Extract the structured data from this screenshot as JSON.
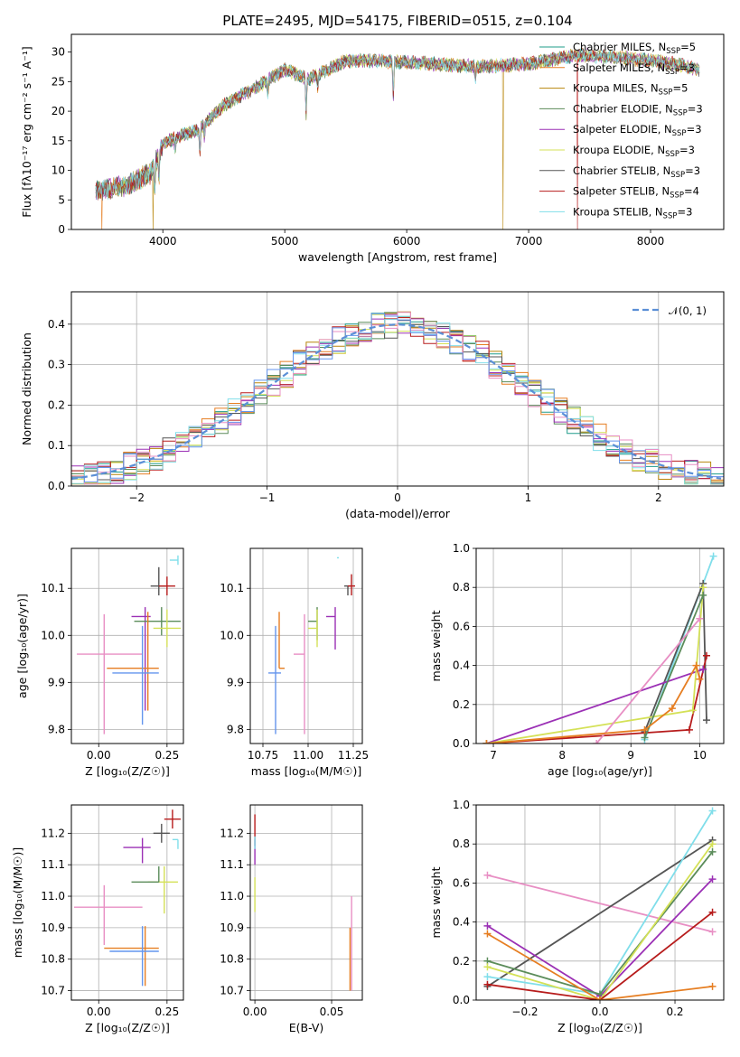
{
  "figure": {
    "title": "PLATE=2495, MJD=54175, FIBERID=0515, z=0.104"
  },
  "colors": {
    "Chabrier MILES": "#1f9c8a",
    "Salpeter MILES": "#e67e22",
    "Kroupa MILES": "#b8860b",
    "Chabrier ELODIE": "#5b8c5a",
    "Salpeter ELODIE": "#9b30b5",
    "Kroupa ELODIE": "#d4e157",
    "Chabrier STELIB": "#555555",
    "Salpeter STELIB": "#b71c1c",
    "Kroupa STELIB": "#80deea",
    "extra_blue": "#6495ed",
    "extra_pink": "#e88fc4",
    "normal_curve": "#5b8fd6"
  },
  "chart_data": [
    {
      "id": "spectrum",
      "type": "line",
      "title": "PLATE=2495, MJD=54175, FIBERID=0515, z=0.104",
      "xlabel": "wavelength [Angstrom, rest frame]",
      "ylabel": "Flux [fλ10⁻¹⁷ erg cm⁻² s⁻¹ A⁻¹]",
      "xlim": [
        3250,
        8600
      ],
      "ylim": [
        0,
        33
      ],
      "xticks": [
        4000,
        5000,
        6000,
        7000,
        8000
      ],
      "yticks": [
        0,
        5,
        10,
        15,
        20,
        25,
        30
      ],
      "legend_position": "top-right",
      "grid": false,
      "continuum_wavelength": [
        3450,
        3700,
        3900,
        4000,
        4100,
        4300,
        4500,
        4800,
        5000,
        5200,
        5500,
        5800,
        6200,
        6600,
        7000,
        7400,
        7800,
        8200,
        8400
      ],
      "continuum_flux": [
        6.5,
        7.5,
        9.5,
        14.5,
        15.5,
        17.0,
        21.0,
        24.5,
        27.0,
        25.5,
        28.5,
        28.5,
        28.0,
        27.5,
        28.0,
        29.5,
        29.0,
        28.0,
        27.0
      ],
      "absorption_features": [
        {
          "wavelength": 3934,
          "depth": 5
        },
        {
          "wavelength": 3968,
          "depth": 4
        },
        {
          "wavelength": 4101,
          "depth": 2
        },
        {
          "wavelength": 4304,
          "depth": 4
        },
        {
          "wavelength": 4340,
          "depth": 2
        },
        {
          "wavelength": 4861,
          "depth": 2
        },
        {
          "wavelength": 5175,
          "depth": 6
        },
        {
          "wavelength": 5270,
          "depth": 2
        },
        {
          "wavelength": 5890,
          "depth": 6
        },
        {
          "wavelength": 6563,
          "depth": 2
        }
      ],
      "series": [
        {
          "name": "Chabrier MILES",
          "nssp": "5"
        },
        {
          "name": "Salpeter MILES",
          "nssp": "3"
        },
        {
          "name": "Kroupa MILES",
          "nssp": "5"
        },
        {
          "name": "Chabrier ELODIE",
          "nssp": "3"
        },
        {
          "name": "Salpeter ELODIE",
          "nssp": "3"
        },
        {
          "name": "Kroupa ELODIE",
          "nssp": "3"
        },
        {
          "name": "Chabrier STELIB",
          "nssp": "3"
        },
        {
          "name": "Salpeter STELIB",
          "nssp": "4"
        },
        {
          "name": "Kroupa STELIB",
          "nssp": "3"
        }
      ],
      "drops": [
        {
          "series": "Salpeter MILES",
          "wavelength": 3500
        },
        {
          "series": "Kroupa MILES",
          "wavelength": 3920
        },
        {
          "series": "Kroupa MILES",
          "wavelength": 6790
        },
        {
          "series": "Salpeter STELIB",
          "wavelength": 7400
        }
      ]
    },
    {
      "id": "residuals",
      "type": "histogram",
      "xlabel": "(data-model)/error",
      "ylabel": "Normed distribution",
      "xlim": [
        -2.5,
        2.5
      ],
      "ylim": [
        0,
        0.48
      ],
      "xticks": [
        -2,
        -1,
        0,
        1,
        2
      ],
      "yticks": [
        0.0,
        0.1,
        0.2,
        0.3,
        0.4
      ],
      "grid": true,
      "legend_position": "top-right",
      "curve": {
        "name": "𝒩(0, 1)",
        "mean": 0,
        "sigma": 1
      },
      "bin_width": 0.1
    },
    {
      "id": "age_vs_Z",
      "type": "errorbar",
      "xlabel": "Z [log₁₀(Z/Z☉)]",
      "ylabel": "age  [log₁₀(age/yr)]",
      "xlim": [
        -0.1,
        0.31
      ],
      "ylim": [
        9.77,
        10.185
      ],
      "xticks": [
        0.0,
        0.25
      ],
      "yticks": [
        9.8,
        9.9,
        10.0,
        10.1
      ],
      "grid": true,
      "points": [
        {
          "color": "Kroupa STELIB",
          "x": 0.29,
          "y": 10.16,
          "xerr": [
            0.03,
            0.0
          ],
          "yerr": [
            0.01,
            0.01
          ]
        },
        {
          "color": "Chabrier STELIB",
          "x": 0.22,
          "y": 10.105,
          "xerr": [
            0.03,
            0.03
          ],
          "yerr": [
            0.02,
            0.04
          ]
        },
        {
          "color": "Salpeter STELIB",
          "x": 0.25,
          "y": 10.105,
          "xerr": [
            0.03,
            0.03
          ],
          "yerr": [
            0.02,
            0.02
          ]
        },
        {
          "color": "Salpeter ELODIE",
          "x": 0.17,
          "y": 10.04,
          "xerr": [
            0.05,
            0.02
          ],
          "yerr": [
            0.2,
            0.02
          ]
        },
        {
          "color": "Chabrier ELODIE",
          "x": 0.23,
          "y": 10.03,
          "xerr": [
            0.1,
            0.07
          ],
          "yerr": [
            0.03,
            0.03
          ]
        },
        {
          "color": "Kroupa ELODIE",
          "x": 0.25,
          "y": 10.015,
          "xerr": [
            0.05,
            0.05
          ],
          "yerr": [
            0.04,
            0.04
          ]
        },
        {
          "color": "extra_pink",
          "x": 0.02,
          "y": 9.96,
          "xerr": [
            0.1,
            0.14
          ],
          "yerr": [
            0.17,
            0.085
          ]
        },
        {
          "color": "Salpeter MILES",
          "x": 0.18,
          "y": 9.93,
          "xerr": [
            0.15,
            0.04
          ],
          "yerr": [
            0.09,
            0.12
          ]
        },
        {
          "color": "extra_blue",
          "x": 0.16,
          "y": 9.92,
          "xerr": [
            0.11,
            0.06
          ],
          "yerr": [
            0.11,
            0.1
          ]
        }
      ]
    },
    {
      "id": "age_vs_mass",
      "type": "errorbar",
      "xlabel": "mass [log₁₀(M/M☉)]",
      "ylabel": "",
      "xlim": [
        10.68,
        11.3
      ],
      "ylim": [
        9.77,
        10.185
      ],
      "xticks": [
        10.75,
        11.0,
        11.25
      ],
      "yticks": [
        9.8,
        9.9,
        10.0,
        10.1
      ],
      "grid": true,
      "points": [
        {
          "color": "Kroupa STELIB",
          "x": 11.17,
          "y": 10.165,
          "xerr": [
            0.01,
            0.0
          ],
          "yerr": [
            0.0,
            0.0
          ]
        },
        {
          "color": "Chabrier STELIB",
          "x": 11.22,
          "y": 10.105,
          "xerr": [
            0.02,
            0.02
          ],
          "yerr": [
            0.02,
            0.0
          ]
        },
        {
          "color": "Salpeter STELIB",
          "x": 11.24,
          "y": 10.105,
          "xerr": [
            0.02,
            0.02
          ],
          "yerr": [
            0.02,
            0.025
          ]
        },
        {
          "color": "Salpeter ELODIE",
          "x": 11.15,
          "y": 10.04,
          "xerr": [
            0.05,
            0.0
          ],
          "yerr": [
            0.07,
            0.02
          ]
        },
        {
          "color": "Chabrier ELODIE",
          "x": 11.05,
          "y": 10.03,
          "xerr": [
            0.05,
            0.0
          ],
          "yerr": [
            0.04,
            0.03
          ]
        },
        {
          "color": "Kroupa ELODIE",
          "x": 11.05,
          "y": 10.015,
          "xerr": [
            0.05,
            0.0
          ],
          "yerr": [
            0.04,
            0.04
          ]
        },
        {
          "color": "extra_pink",
          "x": 10.98,
          "y": 9.96,
          "xerr": [
            0.06,
            0.0
          ],
          "yerr": [
            0.17,
            0.085
          ]
        },
        {
          "color": "Salpeter MILES",
          "x": 10.84,
          "y": 9.93,
          "xerr": [
            0.0,
            0.03
          ],
          "yerr": [
            0.0,
            0.12
          ]
        },
        {
          "color": "extra_blue",
          "x": 10.82,
          "y": 9.92,
          "xerr": [
            0.04,
            0.03
          ],
          "yerr": [
            0.13,
            0.1
          ]
        }
      ]
    },
    {
      "id": "mass_weight_vs_age",
      "type": "line",
      "xlabel": "age  [log₁₀(age/yr)]",
      "ylabel": "mass weight",
      "xlim": [
        6.75,
        10.35
      ],
      "ylim": [
        0,
        1.0
      ],
      "xticks": [
        7,
        8,
        9,
        10
      ],
      "yticks": [
        0.0,
        0.2,
        0.4,
        0.6,
        0.8,
        1.0
      ],
      "grid": true,
      "series": [
        {
          "color": "Kroupa STELIB",
          "x": [
            9.2,
            10.2
          ],
          "y": [
            0.02,
            0.96
          ]
        },
        {
          "color": "Chabrier STELIB",
          "x": [
            9.2,
            10.05,
            10.1
          ],
          "y": [
            0.06,
            0.82,
            0.12
          ]
        },
        {
          "color": "Salpeter STELIB",
          "x": [
            6.9,
            9.85,
            10.1
          ],
          "y": [
            0.0,
            0.07,
            0.45
          ]
        },
        {
          "color": "Salpeter ELODIE",
          "x": [
            6.9,
            10.05
          ],
          "y": [
            0.0,
            0.38
          ]
        },
        {
          "color": "Kroupa ELODIE",
          "x": [
            6.9,
            9.9,
            10.05
          ],
          "y": [
            0.0,
            0.17,
            0.8
          ]
        },
        {
          "color": "Chabrier ELODIE",
          "x": [
            9.2,
            10.05
          ],
          "y": [
            0.03,
            0.76
          ]
        },
        {
          "color": "extra_pink",
          "x": [
            8.5,
            10.0
          ],
          "y": [
            0.0,
            0.64
          ]
        },
        {
          "color": "Salpeter MILES",
          "x": [
            6.9,
            9.2,
            9.6,
            9.95,
            10.0
          ],
          "y": [
            0.0,
            0.07,
            0.18,
            0.4,
            0.33
          ]
        }
      ]
    },
    {
      "id": "mass_vs_Z",
      "type": "errorbar",
      "xlabel": "Z [log₁₀(Z/Z☉)]",
      "ylabel": "mass [log₁₀(M/M☉)]",
      "xlim": [
        -0.1,
        0.31
      ],
      "ylim": [
        10.67,
        11.29
      ],
      "xticks": [
        0.0,
        0.25
      ],
      "yticks": [
        10.7,
        10.8,
        10.9,
        11.0,
        11.1,
        11.2
      ],
      "grid": true,
      "points": [
        {
          "color": "Salpeter STELIB",
          "x": 0.27,
          "y": 11.245,
          "xerr": [
            0.03,
            0.03
          ],
          "yerr": [
            0.03,
            0.03
          ]
        },
        {
          "color": "Chabrier STELIB",
          "x": 0.23,
          "y": 11.2,
          "xerr": [
            0.03,
            0.03
          ],
          "yerr": [
            0.03,
            0.03
          ]
        },
        {
          "color": "Kroupa STELIB",
          "x": 0.29,
          "y": 11.18,
          "xerr": [
            0.02,
            0.0
          ],
          "yerr": [
            0.03,
            0.0
          ]
        },
        {
          "color": "Salpeter ELODIE",
          "x": 0.16,
          "y": 11.155,
          "xerr": [
            0.07,
            0.03
          ],
          "yerr": [
            0.05,
            0.03
          ]
        },
        {
          "color": "Kroupa ELODIE",
          "x": 0.24,
          "y": 11.045,
          "xerr": [
            0.06,
            0.05
          ],
          "yerr": [
            0.1,
            0.05
          ]
        },
        {
          "color": "Chabrier ELODIE",
          "x": 0.22,
          "y": 11.045,
          "xerr": [
            0.1,
            0.0
          ],
          "yerr": [
            0.0,
            0.05
          ]
        },
        {
          "color": "extra_pink",
          "x": 0.02,
          "y": 10.965,
          "xerr": [
            0.11,
            0.14
          ],
          "yerr": [
            0.12,
            0.07
          ]
        },
        {
          "color": "Salpeter MILES",
          "x": 0.17,
          "y": 10.835,
          "xerr": [
            0.15,
            0.05
          ],
          "yerr": [
            0.12,
            0.07
          ]
        },
        {
          "color": "extra_blue",
          "x": 0.16,
          "y": 10.825,
          "xerr": [
            0.12,
            0.06
          ],
          "yerr": [
            0.11,
            0.08
          ]
        }
      ]
    },
    {
      "id": "mass_vs_EBV",
      "type": "errorbar",
      "xlabel": "E(B-V)",
      "ylabel": "",
      "xlim": [
        -0.003,
        0.07
      ],
      "ylim": [
        10.67,
        11.29
      ],
      "xticks": [
        0.0,
        0.05
      ],
      "yticks": [
        10.7,
        10.8,
        10.9,
        11.0,
        11.1,
        11.2
      ],
      "grid": true,
      "points": [
        {
          "color": "Salpeter STELIB",
          "x": 0.0,
          "y": 11.2,
          "xerr": [
            0.0,
            0.0
          ],
          "yerr": [
            0.04,
            0.06
          ]
        },
        {
          "color": "Salpeter ELODIE",
          "x": 0.0,
          "y": 11.15,
          "xerr": [
            0.0,
            0.0
          ],
          "yerr": [
            0.05,
            0.03
          ]
        },
        {
          "color": "Kroupa STELIB",
          "x": 0.0,
          "y": 11.17,
          "xerr": [
            0.0,
            0.0
          ],
          "yerr": [
            0.02,
            0.02
          ]
        },
        {
          "color": "Kroupa ELODIE",
          "x": 0.0,
          "y": 11.0,
          "xerr": [
            0.0,
            0.0
          ],
          "yerr": [
            0.05,
            0.06
          ]
        },
        {
          "color": "extra_pink",
          "x": 0.063,
          "y": 10.9,
          "xerr": [
            0.0,
            0.0
          ],
          "yerr": [
            0.2,
            0.1
          ]
        },
        {
          "color": "Salpeter MILES",
          "x": 0.062,
          "y": 10.8,
          "xerr": [
            0.0,
            0.0
          ],
          "yerr": [
            0.1,
            0.1
          ]
        }
      ]
    },
    {
      "id": "mass_weight_vs_Z",
      "type": "line",
      "xlabel": "Z [log₁₀(Z/Z☉)]",
      "ylabel": "mass weight",
      "xlim": [
        -0.33,
        0.33
      ],
      "ylim": [
        0,
        1.0
      ],
      "xticks": [
        -0.2,
        0.0,
        0.2
      ],
      "yticks": [
        0.0,
        0.2,
        0.4,
        0.6,
        0.8,
        1.0
      ],
      "grid": true,
      "series": [
        {
          "color": "extra_pink",
          "x": [
            -0.3,
            0.3
          ],
          "y": [
            0.64,
            0.35
          ]
        },
        {
          "color": "Chabrier STELIB",
          "x": [
            -0.3,
            0.3
          ],
          "y": [
            0.07,
            0.82
          ]
        },
        {
          "color": "Kroupa STELIB",
          "x": [
            -0.3,
            0.0,
            0.3
          ],
          "y": [
            0.12,
            0.03,
            0.97
          ]
        },
        {
          "color": "Salpeter ELODIE",
          "x": [
            -0.3,
            0.0,
            0.3
          ],
          "y": [
            0.38,
            0.02,
            0.62
          ]
        },
        {
          "color": "Chabrier ELODIE",
          "x": [
            -0.3,
            0.0,
            0.3
          ],
          "y": [
            0.2,
            0.03,
            0.76
          ]
        },
        {
          "color": "Kroupa ELODIE",
          "x": [
            -0.3,
            0.0,
            0.3
          ],
          "y": [
            0.17,
            0.0,
            0.8
          ]
        },
        {
          "color": "Salpeter STELIB",
          "x": [
            -0.3,
            0.0,
            0.3
          ],
          "y": [
            0.08,
            0.0,
            0.45
          ]
        },
        {
          "color": "Salpeter MILES",
          "x": [
            -0.3,
            0.0,
            0.3
          ],
          "y": [
            0.34,
            0.0,
            0.07
          ]
        }
      ]
    }
  ]
}
